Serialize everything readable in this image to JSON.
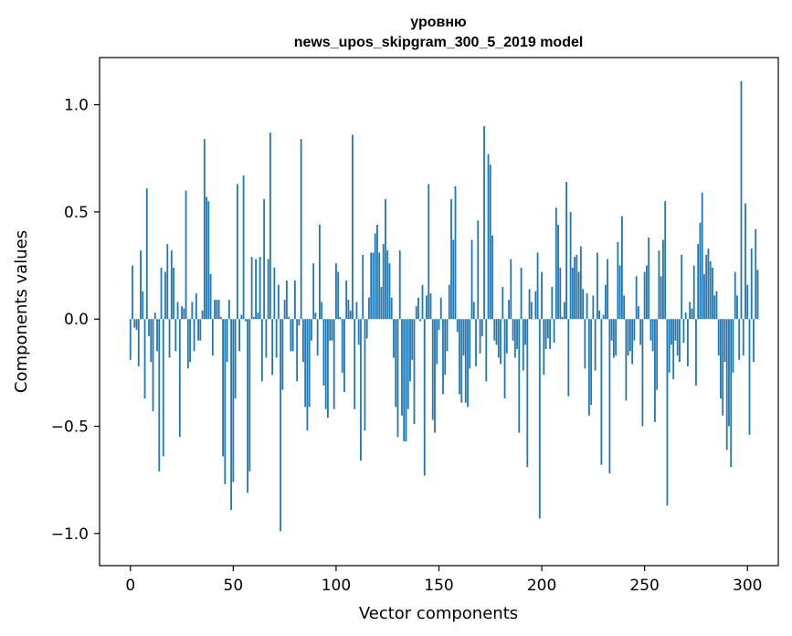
{
  "chart_data": {
    "type": "bar",
    "title_lines": [
      "уровню",
      "news_upos_skipgram_300_5_2019 model"
    ],
    "xlabel": "Vector components",
    "ylabel": "Components values",
    "xlim": [
      -15,
      315
    ],
    "ylim": [
      -1.15,
      1.22
    ],
    "xticks": [
      0,
      50,
      100,
      150,
      200,
      250,
      300
    ],
    "xtick_labels": [
      "0",
      "50",
      "100",
      "150",
      "200",
      "250",
      "300"
    ],
    "yticks": [
      -1.0,
      -0.5,
      0.0,
      0.5,
      1.0
    ],
    "ytick_labels": [
      "−1.0",
      "−0.5",
      "0.0",
      "0.5",
      "1.0"
    ],
    "grid": false,
    "bar_color": "#1f77b4",
    "values": [
      -0.19,
      0.25,
      -0.04,
      -0.05,
      -0.22,
      0.32,
      0.13,
      -0.37,
      0.61,
      -0.08,
      -0.2,
      -0.43,
      0.03,
      -0.15,
      -0.71,
      0.24,
      -0.64,
      0.22,
      0.35,
      -0.18,
      0.32,
      0.24,
      -0.15,
      0.08,
      -0.55,
      0.06,
      0.05,
      0.6,
      -0.23,
      -0.2,
      0.08,
      -0.15,
      0.12,
      -0.1,
      -0.1,
      0.04,
      0.84,
      0.57,
      0.55,
      0.21,
      -0.17,
      0.09,
      0.09,
      0.09,
      0.01,
      -0.64,
      -0.77,
      -0.2,
      0.09,
      -0.89,
      -0.76,
      -0.37,
      0.63,
      -0.15,
      0.02,
      0.67,
      -0.01,
      -0.81,
      -0.71,
      0.29,
      0.01,
      0.28,
      0.03,
      0.29,
      -0.29,
      0.56,
      -0.18,
      0.28,
      0.87,
      -0.26,
      0.24,
      -0.18,
      0.16,
      -0.99,
      -0.33,
      0.09,
      0.18,
      0.01,
      -0.15,
      -0.15,
      0.18,
      -0.29,
      -0.03,
      0.84,
      -0.2,
      -0.41,
      -0.52,
      -0.41,
      -0.1,
      0.26,
      0.03,
      -0.17,
      0.44,
      0.08,
      -0.31,
      -0.42,
      -0.46,
      -0.1,
      -0.1,
      -0.42,
      0.26,
      0.22,
      0.01,
      -0.25,
      -0.34,
      0.18,
      0.09,
      0.04,
      0.86,
      -0.42,
      0.08,
      -0.12,
      -0.66,
      0.3,
      -0.52,
      -0.09,
      0.1,
      0.31,
      0.31,
      0.4,
      0.44,
      0.31,
      0.15,
      0.35,
      0.56,
      0.32,
      0.26,
      0.1,
      -0.18,
      -0.41,
      -0.55,
      0.32,
      -0.45,
      -0.57,
      -0.57,
      -0.42,
      -0.29,
      -0.19,
      -0.49,
      0.06,
      0.1,
      -0.01,
      0.16,
      -0.73,
      0.11,
      0.63,
      0.12,
      -0.47,
      -0.53,
      -0.21,
      -0.05,
      0.1,
      -0.35,
      -0.26,
      -0.15,
      0.16,
      0.56,
      0.37,
      0.62,
      -0.06,
      -0.35,
      -0.39,
      -0.17,
      -0.39,
      -0.41,
      -0.23,
      0.37,
      0.08,
      -0.22,
      0.46,
      -0.16,
      -0.08,
      0.9,
      -0.29,
      0.77,
      0.72,
      0.39,
      -0.1,
      -0.12,
      -0.18,
      -0.21,
      0.15,
      -0.37,
      -0.16,
      0.09,
      0.28,
      -0.1,
      -0.18,
      -0.14,
      -0.53,
      0.24,
      -0.24,
      -0.12,
      -0.69,
      0.14,
      0.08,
      0.0,
      0.13,
      0.31,
      -0.93,
      0.22,
      -0.26,
      -0.14,
      -0.09,
      -0.14,
      0.15,
      -0.11,
      0.52,
      0.44,
      0.24,
      0.01,
      0.08,
      0.64,
      -0.36,
      0.5,
      0.24,
      0.29,
      0.3,
      0.22,
      0.34,
      0.14,
      -0.23,
      0.12,
      -0.45,
      -0.4,
      0.11,
      -0.24,
      0.31,
      0.04,
      -0.68,
      0.02,
      0.16,
      0.28,
      -0.72,
      -0.1,
      -0.18,
      -0.17,
      0.36,
      0.25,
      0.48,
      0.11,
      -0.38,
      -0.17,
      -0.15,
      -0.21,
      -0.1,
      0.2,
      0.06,
      -0.12,
      -0.5,
      0.22,
      0.25,
      0.38,
      -0.1,
      -0.15,
      -0.48,
      -0.33,
      0.32,
      0.2,
      0.37,
      0.55,
      -0.87,
      -0.25,
      -0.12,
      -0.28,
      -0.1,
      -0.17,
      -0.2,
      0.3,
      -0.11,
      0.03,
      -0.22,
      0.08,
      0.05,
      0.25,
      -0.31,
      0.35,
      0.45,
      0.59,
      0.21,
      0.3,
      0.33,
      0.27,
      0.24,
      0.11,
      0.13,
      -0.17,
      -0.37,
      -0.45,
      -0.2,
      -0.61,
      -0.5,
      -0.69,
      -0.25,
      0.22,
      0.11,
      -0.19,
      1.11,
      -0.17,
      0.54,
      0.16,
      -0.54,
      0.33,
      -0.2,
      0.42,
      0.23
    ]
  }
}
